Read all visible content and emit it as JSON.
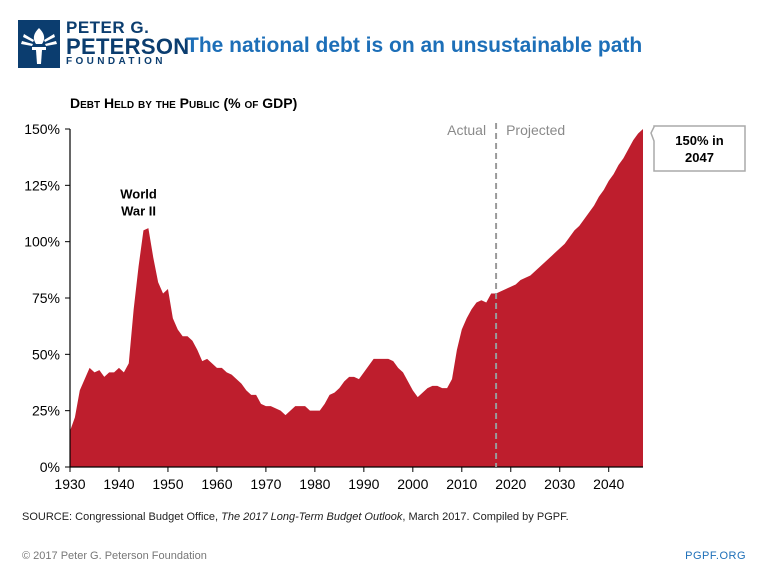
{
  "brand": {
    "line1": "PETER G.",
    "line2": "PETERSON",
    "line3": "FOUNDATION",
    "logo_icon": "torch-icon",
    "color": "#0b3d6f"
  },
  "title": "The national debt is on an unsustainable path",
  "source": {
    "prefix": "SOURCE: Congressional Budget Office, ",
    "publication": "The 2017 Long-Term Budget Outlook",
    "suffix": ", March 2017. Compiled by PGPF."
  },
  "footer": {
    "copyright": "© 2017 Peter G. Peterson Foundation",
    "site": "PGPF.ORG"
  },
  "chart_data": {
    "type": "area",
    "title": "Debt Held by the Public (% of GDP)",
    "xlabel": "",
    "ylabel": "",
    "xlim": [
      1930,
      2047
    ],
    "ylim": [
      0,
      150
    ],
    "x_ticks": [
      1930,
      1940,
      1950,
      1960,
      1970,
      1980,
      1990,
      2000,
      2010,
      2020,
      2030,
      2040
    ],
    "y_ticks": [
      0,
      25,
      50,
      75,
      100,
      125,
      150
    ],
    "y_tick_labels": [
      "0%",
      "25%",
      "50%",
      "75%",
      "100%",
      "125%",
      "150%"
    ],
    "color": "#be1e2d",
    "divider_year": 2017,
    "label_actual": "Actual",
    "label_projected": "Projected",
    "annotations": {
      "ww2_line1": "World",
      "ww2_line2": "War II",
      "ww2_year": 1944,
      "callout_line1": "150% in",
      "callout_line2": "2047"
    },
    "series": [
      {
        "name": "Debt held by the public",
        "x": [
          1930,
          1931,
          1932,
          1933,
          1934,
          1935,
          1936,
          1937,
          1938,
          1939,
          1940,
          1941,
          1942,
          1943,
          1944,
          1945,
          1946,
          1947,
          1948,
          1949,
          1950,
          1951,
          1952,
          1953,
          1954,
          1955,
          1956,
          1957,
          1958,
          1959,
          1960,
          1961,
          1962,
          1963,
          1964,
          1965,
          1966,
          1967,
          1968,
          1969,
          1970,
          1971,
          1972,
          1973,
          1974,
          1975,
          1976,
          1977,
          1978,
          1979,
          1980,
          1981,
          1982,
          1983,
          1984,
          1985,
          1986,
          1987,
          1988,
          1989,
          1990,
          1991,
          1992,
          1993,
          1994,
          1995,
          1996,
          1997,
          1998,
          1999,
          2000,
          2001,
          2002,
          2003,
          2004,
          2005,
          2006,
          2007,
          2008,
          2009,
          2010,
          2011,
          2012,
          2013,
          2014,
          2015,
          2016,
          2017,
          2018,
          2019,
          2020,
          2021,
          2022,
          2023,
          2024,
          2025,
          2026,
          2027,
          2028,
          2029,
          2030,
          2031,
          2032,
          2033,
          2034,
          2035,
          2036,
          2037,
          2038,
          2039,
          2040,
          2041,
          2042,
          2043,
          2044,
          2045,
          2046,
          2047
        ],
        "values": [
          16,
          22,
          34,
          39,
          44,
          42,
          43,
          40,
          42,
          42,
          44,
          42,
          46,
          70,
          89,
          105,
          106,
          93,
          82,
          77,
          79,
          66,
          61,
          58,
          58,
          56,
          52,
          47,
          48,
          46,
          44,
          44,
          42,
          41,
          39,
          37,
          34,
          32,
          32,
          28,
          27,
          27,
          26,
          25,
          23,
          25,
          27,
          27,
          27,
          25,
          25,
          25,
          28,
          32,
          33,
          35,
          38,
          40,
          40,
          39,
          42,
          45,
          48,
          48,
          48,
          48,
          47,
          44,
          42,
          38,
          34,
          31,
          33,
          35,
          36,
          36,
          35,
          35,
          39,
          52,
          61,
          66,
          70,
          73,
          74,
          73,
          77,
          77,
          78,
          79,
          80,
          81,
          83,
          84,
          85,
          87,
          89,
          91,
          93,
          95,
          97,
          99,
          102,
          105,
          107,
          110,
          113,
          116,
          120,
          123,
          127,
          130,
          134,
          137,
          141,
          145,
          148,
          150
        ]
      }
    ]
  }
}
